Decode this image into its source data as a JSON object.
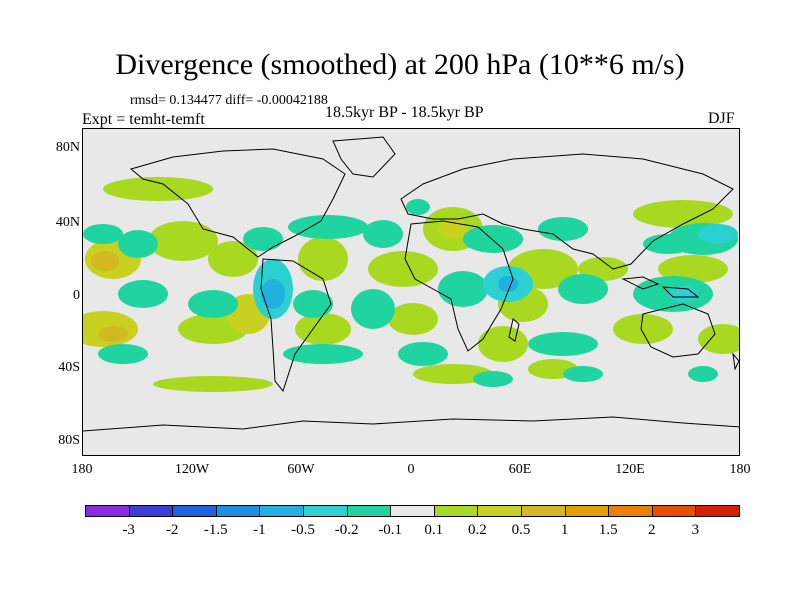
{
  "header": {
    "title": "Divergence (smoothed) at 200 hPa (10**6 m/s)",
    "stats": "rmsd= 0.134477 diff= -0.00042188",
    "experiment": "Expt = temht-temft",
    "period": "18.5kyr BP - 18.5kyr BP",
    "season": "DJF"
  },
  "map": {
    "background": "#e8e8e8",
    "y_ticks": [
      "80N",
      "40N",
      "0",
      "40S",
      "80S"
    ],
    "x_ticks": [
      "180",
      "120W",
      "60W",
      "0",
      "60E",
      "120E",
      "180"
    ]
  },
  "colorbar": {
    "colors": [
      "#8a2be2",
      "#3d3dd6",
      "#1e63d9",
      "#1e90e0",
      "#21b0e0",
      "#2bd0d0",
      "#20d4a0",
      "#e8e8e8",
      "#a8d820",
      "#c8d020",
      "#d4b820",
      "#e0a000",
      "#e88000",
      "#e85000",
      "#d42000"
    ],
    "labels": [
      "-3",
      "-2",
      "-1.5",
      "-1",
      "-0.5",
      "-0.2",
      "-0.1",
      "0.1",
      "0.2",
      "0.5",
      "1",
      "1.5",
      "2",
      "3"
    ]
  }
}
